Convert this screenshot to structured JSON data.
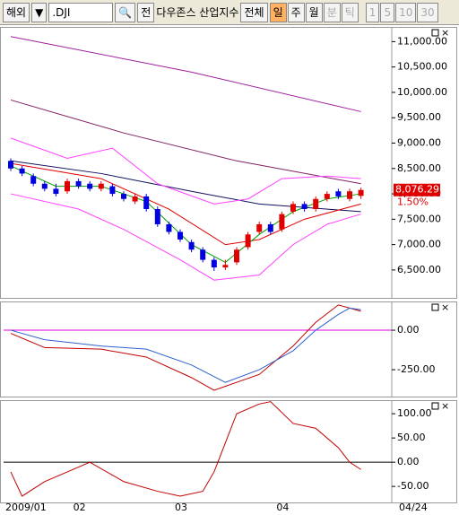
{
  "toolbar": {
    "market": "해외",
    "dropdown": "▼",
    "symbol": ".DJI",
    "search": "🔍",
    "all_short": "전",
    "symbol_name": "다우존스 산업지수",
    "all": "전체",
    "periods": [
      "일",
      "주",
      "월",
      "분",
      "틱"
    ],
    "intervals": [
      "1",
      "5",
      "10",
      "30"
    ]
  },
  "chart_data": [
    {
      "type": "candlestick",
      "categories": [
        "2009/01",
        null,
        null,
        null,
        null,
        null,
        "02",
        null,
        null,
        null,
        null,
        null,
        null,
        null,
        null,
        "03",
        null,
        null,
        null,
        null,
        null,
        null,
        null,
        null,
        "04",
        null,
        null,
        null,
        null,
        null,
        null,
        null
      ],
      "end_label": "04/24",
      "open": [
        8650,
        8500,
        8350,
        8200,
        8100,
        8050,
        8250,
        8200,
        8100,
        8150,
        8000,
        7850,
        7950,
        7700,
        7400,
        7250,
        7050,
        6900,
        6700,
        6550,
        6650,
        6950,
        7250,
        7400,
        7300,
        7650,
        7800,
        7700,
        7900,
        8050,
        7900,
        7960
      ],
      "high": [
        8700,
        8550,
        8400,
        8250,
        8200,
        8300,
        8300,
        8250,
        8250,
        8200,
        8050,
        8000,
        8000,
        7750,
        7450,
        7300,
        7100,
        6950,
        6750,
        6700,
        6950,
        7250,
        7450,
        7450,
        7650,
        7850,
        7850,
        7950,
        8050,
        8100,
        8100,
        8120
      ],
      "low": [
        8450,
        8350,
        8150,
        8050,
        7950,
        8000,
        8100,
        8050,
        8050,
        7950,
        7850,
        7800,
        7650,
        7350,
        7200,
        7050,
        6850,
        6650,
        6480,
        6500,
        6600,
        6900,
        7200,
        7200,
        7250,
        7600,
        7650,
        7650,
        7850,
        7900,
        7850,
        7900
      ],
      "close": [
        8500,
        8400,
        8200,
        8100,
        8000,
        8250,
        8150,
        8100,
        8200,
        8000,
        7900,
        7950,
        7700,
        7400,
        7250,
        7100,
        6900,
        6700,
        6550,
        6600,
        6900,
        7200,
        7400,
        7250,
        7600,
        7800,
        7700,
        7900,
        8000,
        7950,
        8050,
        8076.29
      ],
      "up_color": "#e00000",
      "down_color": "#0000e0",
      "last_price_label": "8,076.29",
      "change_label": "1.50%",
      "ylim": [
        5950,
        11290
      ],
      "yticks": [
        {
          "value": 6500,
          "label": "6,500.00"
        },
        {
          "value": 7000,
          "label": "7,000.00"
        },
        {
          "value": 7500,
          "label": "7,500.00"
        },
        {
          "value": 8000,
          "label": "8,000.00"
        },
        {
          "value": 8500,
          "label": "8,500.00"
        },
        {
          "value": 9000,
          "label": "9,000.00"
        },
        {
          "value": 9500,
          "label": "9,500.00"
        },
        {
          "value": 10000,
          "label": "10,000.00"
        },
        {
          "value": 10500,
          "label": "10,500.00"
        },
        {
          "value": 11000,
          "label": "11,000.00"
        }
      ],
      "lines": [
        {
          "color": "#a020a0",
          "x": [
            0,
            16,
            31
          ],
          "values": [
            11100,
            10400,
            9620
          ]
        },
        {
          "color": "#802060",
          "x": [
            0,
            10,
            20,
            31
          ],
          "values": [
            9850,
            9200,
            8650,
            8200
          ]
        },
        {
          "color": "#101060",
          "x": [
            0,
            8,
            16,
            22,
            31
          ],
          "values": [
            8650,
            8400,
            8050,
            7800,
            7650
          ]
        },
        {
          "color": "#ff40ff",
          "x": [
            0,
            5,
            9,
            13,
            18,
            21,
            24,
            28,
            31
          ],
          "values": [
            9100,
            8700,
            8900,
            8200,
            7800,
            7900,
            8300,
            8350,
            8300
          ]
        },
        {
          "color": "#ff40ff",
          "x": [
            0,
            6,
            10,
            15,
            18,
            22,
            25,
            28,
            31
          ],
          "values": [
            8000,
            7700,
            7300,
            6700,
            6300,
            6400,
            7000,
            7400,
            7600
          ]
        },
        {
          "color": "#e00000",
          "x": [
            0,
            8,
            14,
            19,
            22,
            26,
            31
          ],
          "values": [
            8600,
            8300,
            7700,
            7000,
            7100,
            7500,
            7800
          ]
        },
        {
          "color": "#00a000",
          "x": [
            0,
            4,
            8,
            12,
            16,
            19,
            22,
            25,
            28,
            31
          ],
          "values": [
            8550,
            8150,
            8150,
            7850,
            7000,
            6650,
            7200,
            7650,
            7900,
            8000
          ]
        }
      ]
    },
    {
      "type": "line",
      "ylim": [
        -420,
        182
      ],
      "yticks": [
        {
          "value": 0,
          "label": "0.00"
        },
        {
          "value": -250,
          "label": "-250.00"
        }
      ],
      "zero_color": "#e000e0",
      "series": [
        {
          "color": "#c00000",
          "x": [
            0,
            3,
            8,
            12,
            16,
            18,
            22,
            25,
            27,
            29,
            30,
            31
          ],
          "values": [
            -20,
            -110,
            -120,
            -170,
            -300,
            -380,
            -280,
            -100,
            50,
            160,
            140,
            120
          ]
        },
        {
          "color": "#3060d0",
          "x": [
            0,
            3,
            8,
            12,
            16,
            19,
            22,
            25,
            27,
            29,
            30,
            31
          ],
          "values": [
            0,
            -60,
            -100,
            -120,
            -220,
            -330,
            -250,
            -130,
            0,
            100,
            140,
            130
          ]
        }
      ]
    },
    {
      "type": "line",
      "ylim": [
        -83,
        128
      ],
      "yticks": [
        {
          "value": 100,
          "label": "100.00"
        },
        {
          "value": 50,
          "label": "50.00"
        },
        {
          "value": 0,
          "label": "0.00"
        },
        {
          "value": -50,
          "label": "-50.00"
        }
      ],
      "zero_color": "#000000",
      "series": [
        {
          "color": "#c00000",
          "x": [
            0,
            1,
            3,
            7,
            10,
            13,
            15,
            17,
            18,
            20,
            22,
            23,
            25,
            27,
            29,
            30,
            31
          ],
          "values": [
            -20,
            -70,
            -40,
            0,
            -40,
            -60,
            -70,
            -60,
            -20,
            100,
            120,
            125,
            80,
            70,
            30,
            0,
            -15
          ]
        }
      ]
    }
  ]
}
